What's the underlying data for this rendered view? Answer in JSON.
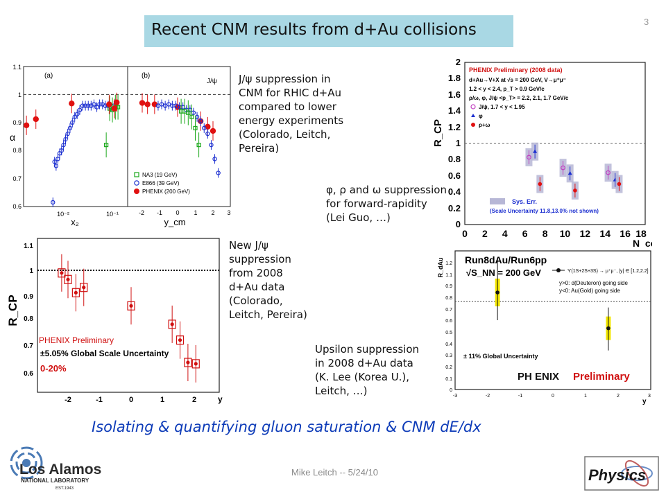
{
  "slide": {
    "title": "Recent CNM results from d+Au collisions",
    "number": "3",
    "footer": "Mike Leitch -- 5/24/10",
    "bottom_line": "Isolating & quantifying gluon saturation & CNM dE/dx"
  },
  "captions": {
    "jpsi_low_energy": [
      "J/ψ suppression in",
      "CNM for RHIC d+Au",
      "compared to lower",
      "energy experiments",
      "(Colorado, Leitch,",
      "Pereira)"
    ],
    "phi_rho_omega": [
      "φ, ρ and ω suppression",
      "for forward-rapidity",
      "(Lei Guo, …)"
    ],
    "new_jpsi": [
      "New J/ψ",
      "suppression",
      "from 2008",
      "d+Au data",
      "(Colorado,",
      "Leitch, Pereira)"
    ],
    "upsilon": [
      "Upsilon suppression",
      "in 2008 d+Au data",
      "(K. Lee (Korea U.),",
      "Leitch, …)"
    ]
  },
  "logos": {
    "lanl_line1": "Los Alamos",
    "lanl_line2": "NATIONAL LABORATORY",
    "lanl_line3": "EST.1943",
    "physics": "Physics"
  },
  "plot_alpha": {
    "panel_a_label": "(a)",
    "panel_b_label": "(b)",
    "jpsi_tag": "J/ψ",
    "ylabel": "α",
    "yticks": [
      "0.6",
      "0.7",
      "0.8",
      "0.9",
      "1",
      "1.1"
    ],
    "xlabel_a": "x₂",
    "xticks_a": [
      "10⁻²",
      "10⁻¹"
    ],
    "xlabel_b": "y_cm",
    "xticks_b": [
      "-2",
      "-1",
      "0",
      "1",
      "2",
      "3"
    ],
    "legend": [
      "NA3 (19 GeV)",
      "E866 (39 GeV)",
      "PHENIX (200 GeV)"
    ],
    "colors": {
      "na3": "#1aa81a",
      "e866": "#1c2fd0",
      "phenix": "#e01010"
    }
  },
  "plot_rcp_phi": {
    "ylabel": "R_CP",
    "xlabel": "N_coll",
    "yticks": [
      "0",
      "0.2",
      "0.4",
      "0.6",
      "0.8",
      "1",
      "1.2",
      "1.4",
      "1.6",
      "1.8",
      "2"
    ],
    "xticks": [
      "0",
      "2",
      "4",
      "6",
      "8",
      "10",
      "12",
      "14",
      "16",
      "18"
    ],
    "header": "PHENIX Preliminary (2008 data)",
    "info_lines": [
      "d+Au→V+X at √s = 200 GeV, V→μ⁺μ⁻",
      "1.2 < y < 2.4, p_T > 0.9 GeV/c",
      "ρ/ω, φ, J/ψ <p_T> = 2.2, 2.1, 1.7 GeV/c"
    ],
    "legend": [
      "J/ψ, 1.7 < y < 1.95",
      "φ",
      "ρ+ω"
    ],
    "syst_label": "Sys. Err.",
    "scale_note": "(Scale Uncertainty 11.8,13.0% not shown)"
  },
  "plot_rcp_jpsi": {
    "ylabel": "R_CP",
    "xlabel": "y",
    "yticks": [
      "0.6",
      "0.7",
      "0.8",
      "0.9",
      "1",
      "1.1"
    ],
    "xticks": [
      "-2",
      "-1",
      "0",
      "1",
      "2"
    ],
    "prelim": "PHENIX Preliminary",
    "scale": "±5.05% Global Scale Uncertainty",
    "centrality": "0-20%"
  },
  "plot_upsilon": {
    "ylabel": "R_dAu",
    "xlabel": "y",
    "yticks": [
      "0",
      "0.1",
      "0.2",
      "0.3",
      "0.4",
      "0.5",
      "0.6",
      "0.7",
      "0.8",
      "0.9",
      "1",
      "1.1",
      "1.2"
    ],
    "xticks": [
      "-3",
      "-2",
      "-1",
      "0",
      "1",
      "2",
      "3"
    ],
    "title": "Run8dAu/Run6pp",
    "energy": "√S_NN = 200 GeV",
    "legend": "ϒ(1S+2S+3S) → μ⁺μ⁻, |y| ∈ [1.2,2.2]",
    "side1": "y>0: d(Deuteron) going side",
    "side2": "y<0: Au(Gold) going side",
    "global": "± 11% Global Uncertainty",
    "logo": "PH ENIX",
    "prelim": "Preliminary"
  },
  "chart_data": [
    {
      "type": "scatter",
      "title": "",
      "ylabel": "α",
      "xlabel": "x₂",
      "ylim": [
        0.6,
        1.1
      ],
      "series": [
        {
          "name": "E866 (39 GeV)",
          "x": [
            0.0062,
            0.0067,
            0.0072,
            0.0078,
            0.0085,
            0.0093,
            0.0102,
            0.0112,
            0.0124,
            0.0138,
            0.0154,
            0.0172,
            0.0193,
            0.0218,
            0.0248,
            0.0283,
            0.0324,
            0.037,
            0.0423,
            0.0483,
            0.055,
            0.063,
            0.072,
            0.082,
            0.094,
            0.108
          ],
          "y": [
            0.615,
            0.76,
            0.745,
            0.77,
            0.79,
            0.8,
            0.82,
            0.84,
            0.86,
            0.88,
            0.9,
            0.92,
            0.93,
            0.945,
            0.96,
            0.96,
            0.96,
            0.96,
            0.965,
            0.955,
            0.965,
            0.965,
            0.96,
            0.96,
            0.955,
            0.96
          ]
        },
        {
          "name": "NA3 (19 GeV)",
          "x": [
            0.075,
            0.088,
            0.1,
            0.115,
            0.13
          ],
          "y": [
            0.82,
            0.95,
            0.945,
            0.955,
            0.955
          ]
        },
        {
          "name": "PHENIX (200 GeV)",
          "x": [
            0.0018,
            0.0028,
            0.0149,
            0.0861,
            0.1096,
            0.1225
          ],
          "y": [
            0.89,
            0.912,
            0.968,
            0.965,
            0.95,
            0.972
          ]
        }
      ]
    },
    {
      "type": "scatter",
      "title": "",
      "ylabel": "α",
      "xlabel": "y_cm",
      "xlim": [
        -2.5,
        3
      ],
      "ylim": [
        0.6,
        1.1
      ],
      "series": [
        {
          "name": "PHENIX (200 GeV)",
          "x": [
            -2.0,
            -1.7,
            -1.3,
            0.0,
            1.3,
            1.7,
            2.0
          ],
          "y": [
            0.97,
            0.965,
            0.965,
            0.955,
            0.905,
            0.885,
            0.87
          ]
        },
        {
          "name": "E866 (39 GeV)",
          "x": [
            -1.1,
            -0.9,
            -0.7,
            -0.5,
            -0.3,
            -0.1,
            0.1,
            0.3,
            0.5,
            0.7,
            0.9,
            1.1,
            1.3,
            1.5,
            1.7,
            1.9,
            2.1,
            2.3
          ],
          "y": [
            0.96,
            0.965,
            0.96,
            0.965,
            0.96,
            0.96,
            0.955,
            0.955,
            0.945,
            0.945,
            0.935,
            0.92,
            0.905,
            0.88,
            0.86,
            0.82,
            0.77,
            0.72
          ]
        },
        {
          "name": "NA3 (19 GeV)",
          "x": [
            0.2,
            0.4,
            0.6,
            0.8,
            1.0,
            1.2
          ],
          "y": [
            0.94,
            0.94,
            0.935,
            0.92,
            0.88,
            0.82
          ]
        }
      ]
    },
    {
      "type": "scatter",
      "title": "",
      "ylabel": "R_CP",
      "xlabel": "N_coll",
      "xlim": [
        0,
        18
      ],
      "ylim": [
        0,
        2
      ],
      "series": [
        {
          "name": "J/ψ, 1.7 < y < 1.95",
          "x": [
            6.4,
            9.8,
            14.3
          ],
          "y": [
            0.83,
            0.7,
            0.64
          ]
        },
        {
          "name": "φ",
          "x": [
            7.0,
            10.5,
            15.0
          ],
          "y": [
            0.9,
            0.63,
            0.55
          ]
        },
        {
          "name": "ρ+ω",
          "x": [
            7.5,
            11.0,
            15.4
          ],
          "y": [
            0.5,
            0.42,
            0.5
          ]
        }
      ]
    },
    {
      "type": "scatter",
      "title": "",
      "ylabel": "R_CP",
      "xlabel": "y",
      "ylim": [
        0.55,
        1.15
      ],
      "series": [
        {
          "name": "0-20%",
          "x": [
            -2.2,
            -2.0,
            -1.75,
            -1.5,
            0.0,
            1.3,
            1.55,
            1.8,
            2.05
          ],
          "y": [
            0.99,
            0.965,
            0.915,
            0.935,
            0.865,
            0.795,
            0.735,
            0.65,
            0.645
          ]
        }
      ]
    },
    {
      "type": "scatter",
      "title": "Run8dAu/Run6pp",
      "ylabel": "R_dAu",
      "xlabel": "y",
      "xlim": [
        -3,
        3
      ],
      "ylim": [
        0,
        1.2
      ],
      "series": [
        {
          "name": "ϒ(1S+2S+3S) → μ⁺μ⁻, |y| ∈ [1.2,2.2]",
          "x": [
            -1.7,
            1.7
          ],
          "y": [
            0.84,
            0.53
          ]
        }
      ]
    }
  ]
}
